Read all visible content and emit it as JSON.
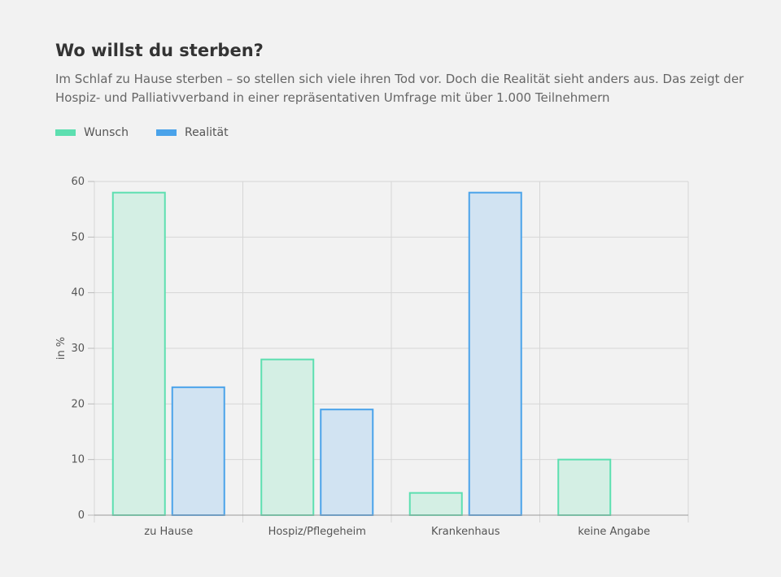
{
  "header": {
    "title": "Wo willst du sterben?",
    "subtitle": "Im Schlaf zu Hause sterben – so stellen sich viele ihren Tod vor. Doch die Realität sieht anders aus. Das zeigt der Hospiz- und Palliativverband in einer repräsentativen Umfrage mit über 1.000 Teilnehmern"
  },
  "legend": {
    "items": [
      {
        "label": "Wunsch",
        "color": "#5ddfb0"
      },
      {
        "label": "Realität",
        "color": "#4aa3ea"
      }
    ]
  },
  "chart_data": {
    "type": "bar",
    "categories": [
      "zu Hause",
      "Hospiz/Pflegeheim",
      "Krankenhaus",
      "keine Angabe"
    ],
    "series": [
      {
        "name": "Wunsch",
        "values": [
          58,
          28,
          4,
          10
        ],
        "stroke": "#5ddfb0",
        "fill": "#d4efe4"
      },
      {
        "name": "Realität",
        "values": [
          23,
          19,
          58,
          null
        ],
        "stroke": "#4aa3ea",
        "fill": "#d1e3f2"
      }
    ],
    "ylabel": "in %",
    "xlabel": "",
    "ylim": [
      0,
      60
    ],
    "yticks": [
      0,
      10,
      20,
      30,
      40,
      50,
      60
    ],
    "grid": true,
    "legend_position": "top-left"
  }
}
